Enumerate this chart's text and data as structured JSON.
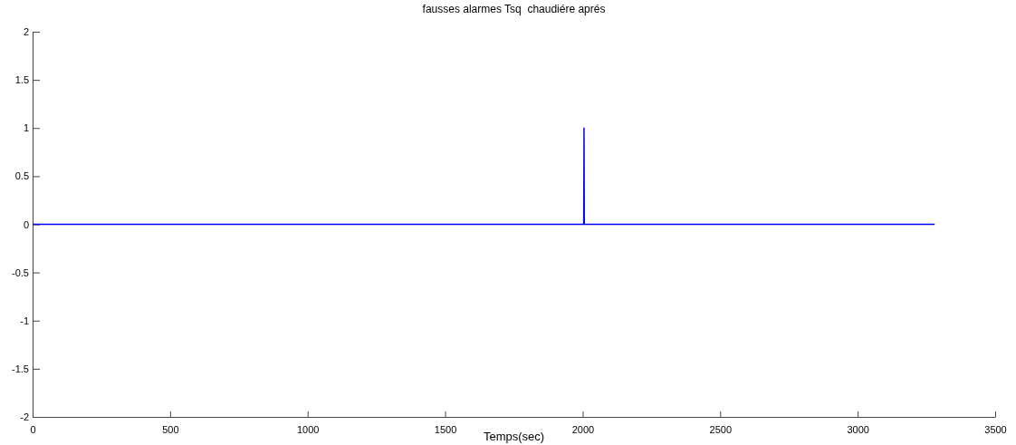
{
  "chart_data": {
    "type": "line",
    "title": "fausses alarmes Tsq  chaudiére aprés",
    "xlabel": "Temps(sec)",
    "x": [
      0,
      2004,
      2005,
      2006,
      3280
    ],
    "series": [
      {
        "color": "#0000ff",
        "values": [
          0,
          0,
          1,
          0,
          0
        ]
      }
    ],
    "xlim": [
      0,
      3500
    ],
    "xticks": [
      0,
      500,
      1000,
      1500,
      2000,
      2500,
      3000,
      3500
    ],
    "ylim": [
      -2,
      2
    ],
    "yticks": [
      -2,
      -1.5,
      -1,
      -0.5,
      0,
      0.5,
      1,
      1.5,
      2
    ],
    "grid": false,
    "marker": "none",
    "line_style": "solid"
  }
}
